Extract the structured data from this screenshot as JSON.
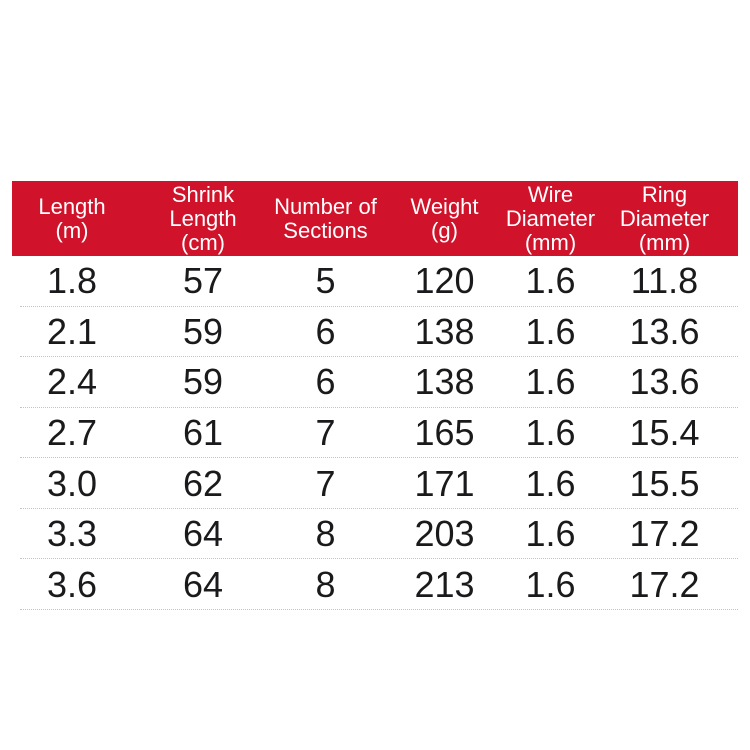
{
  "table": {
    "colors": {
      "page_bg": "#ffffff",
      "header_bg": "#d0122a",
      "header_fg": "#ffffff",
      "body_fg": "#1a1a1c",
      "divider": "#c4c4c4"
    },
    "columns": [
      {
        "id": "length-m",
        "label_lines": [
          "Length",
          "(m)"
        ]
      },
      {
        "id": "shrink-length-cm",
        "label_lines": [
          "Shrink",
          "Length",
          "(cm)"
        ]
      },
      {
        "id": "number-of-sections",
        "label_lines": [
          "Number of",
          "Sections"
        ]
      },
      {
        "id": "weight-g",
        "label_lines": [
          "Weight",
          "(g)"
        ]
      },
      {
        "id": "wire-diameter-mm",
        "label_lines": [
          "Wire",
          "Diameter",
          "(mm)"
        ]
      },
      {
        "id": "ring-diameter-mm",
        "label_lines": [
          "Ring",
          "Diameter",
          "(mm)"
        ]
      }
    ],
    "rows": [
      [
        "1.8",
        "57",
        "5",
        "120",
        "1.6",
        "11.8"
      ],
      [
        "2.1",
        "59",
        "6",
        "138",
        "1.6",
        "13.6"
      ],
      [
        "2.4",
        "59",
        "6",
        "138",
        "1.6",
        "13.6"
      ],
      [
        "2.7",
        "61",
        "7",
        "165",
        "1.6",
        "15.4"
      ],
      [
        "3.0",
        "62",
        "7",
        "171",
        "1.6",
        "15.5"
      ],
      [
        "3.3",
        "64",
        "8",
        "203",
        "1.6",
        "17.2"
      ],
      [
        "3.6",
        "64",
        "8",
        "213",
        "1.6",
        "17.2"
      ]
    ]
  }
}
